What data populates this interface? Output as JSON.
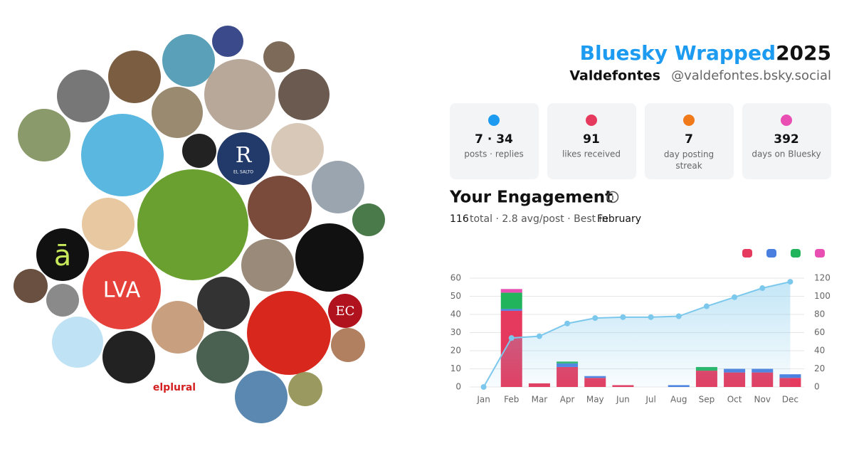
{
  "header": {
    "title": "Bluesky Wrapped",
    "year": "2025",
    "name": "Valdefontes",
    "handle": "@valdefontes.bsky.social"
  },
  "avatars": {
    "lva": "LVA",
    "ec": "EC",
    "a": "ā",
    "r": "R",
    "salto": "EL SALTO",
    "plural": "elplural"
  },
  "stats": [
    {
      "value": "7 · 34",
      "label": "posts · replies"
    },
    {
      "value": "91",
      "label": "likes received"
    },
    {
      "value": "7",
      "label": "day posting streak"
    },
    {
      "value": "392",
      "label": "days on Bluesky"
    }
  ],
  "engagement": {
    "title": "Your Engagement",
    "total": "116",
    "summary": "total · 2.8 avg/post · Best in",
    "best": "February"
  },
  "chart_data": {
    "type": "bar",
    "stacked": true,
    "categories": [
      "Jan",
      "Feb",
      "Mar",
      "Apr",
      "May",
      "Jun",
      "Jul",
      "Aug",
      "Sep",
      "Oct",
      "Nov",
      "Dec"
    ],
    "series": [
      {
        "color": "#e5395d",
        "values": [
          0,
          42,
          2,
          11,
          5,
          1,
          0,
          0,
          9,
          8,
          8,
          5
        ]
      },
      {
        "color": "#4a7fe0",
        "values": [
          0,
          1,
          0,
          2,
          1,
          0,
          0,
          1,
          0,
          2,
          2,
          2
        ]
      },
      {
        "color": "#22b35d",
        "values": [
          0,
          9,
          0,
          1,
          0,
          0,
          0,
          0,
          2,
          0,
          0,
          0
        ]
      },
      {
        "color": "#e94fb3",
        "values": [
          0,
          2,
          0,
          0,
          0,
          0,
          0,
          0,
          0,
          0,
          0,
          0
        ]
      },
      {
        "type": "line",
        "axis": "y2",
        "color": "#7cc8ec",
        "values": [
          0,
          54,
          56,
          70,
          76,
          77,
          77,
          78,
          89,
          99,
          109,
          116
        ]
      }
    ],
    "ylim": [
      0,
      60
    ],
    "yticks": [
      0,
      10,
      20,
      30,
      40,
      50,
      60
    ],
    "y2lim": [
      0,
      120
    ],
    "y2ticks": [
      0,
      20,
      40,
      60,
      80,
      100,
      120
    ],
    "grid": true
  }
}
